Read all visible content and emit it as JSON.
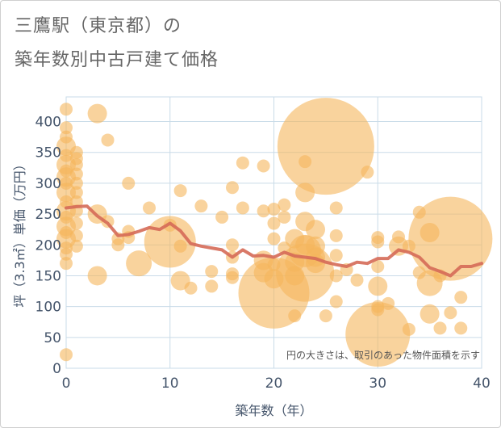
{
  "title_line1": "三鷹駅（東京都）の",
  "title_line2": "築年数別中古戸建て価格",
  "chart_data": {
    "type": "scatter",
    "title": "三鷹駅（東京都）の 築年数別中古戸建て価格",
    "xlabel": "築年数（年）",
    "ylabel": "坪（3.3㎡）単価（万円）",
    "xlim": [
      0,
      40
    ],
    "ylim": [
      0,
      440
    ],
    "xticks": [
      0,
      10,
      20,
      30,
      40
    ],
    "yticks": [
      0,
      50,
      100,
      150,
      200,
      250,
      300,
      350,
      400
    ],
    "grid": true,
    "annotation": "円の大きさは、取引のあった物件面積を示す",
    "colors": {
      "bubble": "#f5b65c",
      "line": "#d56a58",
      "grid": "#c9dbe8",
      "axis_text": "#45556b"
    },
    "bubbles": [
      {
        "x": 0,
        "y": 420,
        "s": 2
      },
      {
        "x": 0,
        "y": 390,
        "s": 2
      },
      {
        "x": 0,
        "y": 375,
        "s": 2
      },
      {
        "x": 0,
        "y": 360,
        "s": 3
      },
      {
        "x": 0,
        "y": 345,
        "s": 2
      },
      {
        "x": 0,
        "y": 330,
        "s": 3
      },
      {
        "x": 0,
        "y": 320,
        "s": 2
      },
      {
        "x": 0,
        "y": 310,
        "s": 3
      },
      {
        "x": 0,
        "y": 300,
        "s": 2
      },
      {
        "x": 0,
        "y": 285,
        "s": 3
      },
      {
        "x": 0,
        "y": 270,
        "s": 2
      },
      {
        "x": 0,
        "y": 255,
        "s": 3
      },
      {
        "x": 0,
        "y": 245,
        "s": 2
      },
      {
        "x": 0,
        "y": 230,
        "s": 3
      },
      {
        "x": 0,
        "y": 220,
        "s": 2
      },
      {
        "x": 0,
        "y": 210,
        "s": 3
      },
      {
        "x": 0,
        "y": 195,
        "s": 2
      },
      {
        "x": 0,
        "y": 185,
        "s": 2
      },
      {
        "x": 0,
        "y": 170,
        "s": 2
      },
      {
        "x": 0,
        "y": 22,
        "s": 2
      },
      {
        "x": 1,
        "y": 350,
        "s": 2
      },
      {
        "x": 1,
        "y": 340,
        "s": 2
      },
      {
        "x": 1,
        "y": 330,
        "s": 2
      },
      {
        "x": 1,
        "y": 315,
        "s": 2
      },
      {
        "x": 1,
        "y": 300,
        "s": 2
      },
      {
        "x": 1,
        "y": 285,
        "s": 2
      },
      {
        "x": 1,
        "y": 270,
        "s": 2
      },
      {
        "x": 1,
        "y": 255,
        "s": 2
      },
      {
        "x": 1,
        "y": 235,
        "s": 2
      },
      {
        "x": 1,
        "y": 215,
        "s": 2
      },
      {
        "x": 1,
        "y": 198,
        "s": 2
      },
      {
        "x": 3,
        "y": 413,
        "s": 3
      },
      {
        "x": 3,
        "y": 250,
        "s": 3
      },
      {
        "x": 3,
        "y": 150,
        "s": 3
      },
      {
        "x": 4,
        "y": 370,
        "s": 2
      },
      {
        "x": 4,
        "y": 238,
        "s": 2
      },
      {
        "x": 5,
        "y": 200,
        "s": 2
      },
      {
        "x": 5,
        "y": 210,
        "s": 2
      },
      {
        "x": 6,
        "y": 300,
        "s": 2
      },
      {
        "x": 6,
        "y": 222,
        "s": 2
      },
      {
        "x": 6,
        "y": 212,
        "s": 2
      },
      {
        "x": 7,
        "y": 170,
        "s": 4
      },
      {
        "x": 8,
        "y": 260,
        "s": 2
      },
      {
        "x": 10,
        "y": 205,
        "s": 8
      },
      {
        "x": 10,
        "y": 232,
        "s": 2
      },
      {
        "x": 11,
        "y": 288,
        "s": 2
      },
      {
        "x": 11,
        "y": 198,
        "s": 2
      },
      {
        "x": 11,
        "y": 142,
        "s": 3
      },
      {
        "x": 12,
        "y": 130,
        "s": 2
      },
      {
        "x": 13,
        "y": 263,
        "s": 2
      },
      {
        "x": 14,
        "y": 157,
        "s": 2
      },
      {
        "x": 14,
        "y": 133,
        "s": 2
      },
      {
        "x": 15,
        "y": 245,
        "s": 2
      },
      {
        "x": 16,
        "y": 293,
        "s": 2
      },
      {
        "x": 16,
        "y": 200,
        "s": 2
      },
      {
        "x": 16,
        "y": 180,
        "s": 2
      },
      {
        "x": 16,
        "y": 153,
        "s": 2
      },
      {
        "x": 16,
        "y": 147,
        "s": 2
      },
      {
        "x": 17,
        "y": 333,
        "s": 2
      },
      {
        "x": 17,
        "y": 260,
        "s": 2
      },
      {
        "x": 19,
        "y": 328,
        "s": 2
      },
      {
        "x": 19,
        "y": 255,
        "s": 2
      },
      {
        "x": 19,
        "y": 175,
        "s": 3
      },
      {
        "x": 19,
        "y": 155,
        "s": 3
      },
      {
        "x": 20,
        "y": 258,
        "s": 2
      },
      {
        "x": 20,
        "y": 235,
        "s": 2
      },
      {
        "x": 20,
        "y": 210,
        "s": 2
      },
      {
        "x": 20,
        "y": 168,
        "s": 2
      },
      {
        "x": 20,
        "y": 145,
        "s": 3
      },
      {
        "x": 20,
        "y": 122,
        "s": 11
      },
      {
        "x": 21,
        "y": 265,
        "s": 2
      },
      {
        "x": 21,
        "y": 245,
        "s": 2
      },
      {
        "x": 21,
        "y": 195,
        "s": 2
      },
      {
        "x": 22,
        "y": 210,
        "s": 3
      },
      {
        "x": 22,
        "y": 172,
        "s": 3
      },
      {
        "x": 22,
        "y": 150,
        "s": 3
      },
      {
        "x": 22,
        "y": 85,
        "s": 2
      },
      {
        "x": 23,
        "y": 335,
        "s": 2
      },
      {
        "x": 23,
        "y": 285,
        "s": 3
      },
      {
        "x": 23,
        "y": 238,
        "s": 3
      },
      {
        "x": 23,
        "y": 200,
        "s": 3
      },
      {
        "x": 23,
        "y": 190,
        "s": 5
      },
      {
        "x": 23,
        "y": 155,
        "s": 9
      },
      {
        "x": 24,
        "y": 225,
        "s": 3
      },
      {
        "x": 24,
        "y": 198,
        "s": 3
      },
      {
        "x": 24,
        "y": 180,
        "s": 3
      },
      {
        "x": 24,
        "y": 170,
        "s": 3
      },
      {
        "x": 25,
        "y": 360,
        "s": 15
      },
      {
        "x": 25,
        "y": 85,
        "s": 2
      },
      {
        "x": 26,
        "y": 260,
        "s": 2
      },
      {
        "x": 26,
        "y": 215,
        "s": 2
      },
      {
        "x": 26,
        "y": 183,
        "s": 2
      },
      {
        "x": 26,
        "y": 150,
        "s": 2
      },
      {
        "x": 26,
        "y": 108,
        "s": 2
      },
      {
        "x": 27,
        "y": 160,
        "s": 2
      },
      {
        "x": 28,
        "y": 143,
        "s": 2
      },
      {
        "x": 29,
        "y": 318,
        "s": 2
      },
      {
        "x": 30,
        "y": 212,
        "s": 2
      },
      {
        "x": 30,
        "y": 205,
        "s": 2
      },
      {
        "x": 30,
        "y": 165,
        "s": 2
      },
      {
        "x": 30,
        "y": 133,
        "s": 3
      },
      {
        "x": 30,
        "y": 100,
        "s": 2
      },
      {
        "x": 30,
        "y": 95,
        "s": 2
      },
      {
        "x": 30,
        "y": 55,
        "s": 10
      },
      {
        "x": 31,
        "y": 105,
        "s": 2
      },
      {
        "x": 32,
        "y": 213,
        "s": 2
      },
      {
        "x": 32,
        "y": 198,
        "s": 3
      },
      {
        "x": 33,
        "y": 63,
        "s": 2
      },
      {
        "x": 33,
        "y": 198,
        "s": 2
      },
      {
        "x": 34,
        "y": 253,
        "s": 2
      },
      {
        "x": 34,
        "y": 155,
        "s": 2
      },
      {
        "x": 35,
        "y": 220,
        "s": 3
      },
      {
        "x": 35,
        "y": 138,
        "s": 4
      },
      {
        "x": 35,
        "y": 88,
        "s": 3
      },
      {
        "x": 36,
        "y": 150,
        "s": 2
      },
      {
        "x": 36,
        "y": 65,
        "s": 2
      },
      {
        "x": 37,
        "y": 210,
        "s": 13
      },
      {
        "x": 37,
        "y": 90,
        "s": 2
      },
      {
        "x": 38,
        "y": 115,
        "s": 2
      },
      {
        "x": 38,
        "y": 65,
        "s": 2
      }
    ],
    "series": [
      {
        "x": [
          0,
          1,
          2,
          3,
          4,
          5,
          6,
          7,
          8,
          9,
          10,
          11,
          12,
          13,
          14,
          15,
          16,
          17,
          18,
          19,
          20,
          21,
          22,
          23,
          24,
          25,
          26,
          27,
          28,
          29,
          30,
          31,
          32,
          33,
          34,
          35,
          36,
          37,
          38,
          39,
          40
        ],
        "values": [
          260,
          262,
          263,
          247,
          235,
          215,
          217,
          222,
          228,
          225,
          235,
          223,
          202,
          198,
          195,
          192,
          180,
          192,
          182,
          183,
          180,
          188,
          182,
          180,
          178,
          172,
          168,
          165,
          172,
          170,
          178,
          178,
          192,
          188,
          180,
          163,
          157,
          150,
          165,
          165,
          170
        ]
      }
    ]
  }
}
